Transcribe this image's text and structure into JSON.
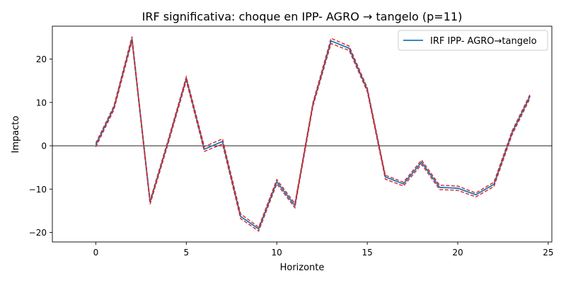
{
  "chart_data": {
    "type": "line",
    "title": "IRF significativa: choque en IPP- AGRO → tangelo (p=11)",
    "xlabel": "Horizonte",
    "ylabel": "Impacto",
    "xlim": [
      -2.4,
      25.2
    ],
    "ylim": [
      -22.2,
      27.6
    ],
    "xticks": [
      0,
      5,
      10,
      15,
      20,
      25
    ],
    "yticks": [
      -20,
      -10,
      0,
      10,
      20
    ],
    "grid": false,
    "legend_position": "top-right",
    "zero_line": true,
    "x": [
      0,
      1,
      2,
      3,
      4,
      5,
      6,
      7,
      8,
      9,
      10,
      11,
      12,
      13,
      14,
      15,
      16,
      17,
      18,
      19,
      20,
      21,
      22,
      23,
      24
    ],
    "series": [
      {
        "name": "IRF IPP- AGRO→tangelo",
        "color": "#1f77b4",
        "values": [
          0.2,
          8.8,
          24.7,
          -13.0,
          1.0,
          15.5,
          -0.8,
          1.0,
          -16.3,
          -19.2,
          -8.3,
          -13.8,
          9.6,
          24.2,
          22.5,
          13.0,
          -7.2,
          -8.8,
          -3.8,
          -9.6,
          -9.8,
          -11.3,
          -8.9,
          3.0,
          11.5
        ]
      },
      {
        "name": "upper",
        "color": "#d62728",
        "style": "dashed",
        "values": [
          0.6,
          9.2,
          25.2,
          -12.6,
          1.4,
          15.9,
          -0.2,
          1.6,
          -15.7,
          -18.8,
          -7.8,
          -13.3,
          10.0,
          24.8,
          23.0,
          13.4,
          -6.8,
          -8.4,
          -3.3,
          -9.1,
          -9.3,
          -10.9,
          -8.4,
          3.4,
          11.9
        ]
      },
      {
        "name": "lower",
        "color": "#d62728",
        "style": "dashed",
        "values": [
          -0.3,
          8.3,
          24.1,
          -13.5,
          0.5,
          15.0,
          -1.3,
          0.4,
          -16.8,
          -19.7,
          -8.8,
          -14.3,
          9.1,
          23.6,
          22.0,
          12.5,
          -7.7,
          -9.3,
          -4.3,
          -10.1,
          -10.3,
          -11.8,
          -9.4,
          2.5,
          11.0
        ]
      }
    ]
  }
}
